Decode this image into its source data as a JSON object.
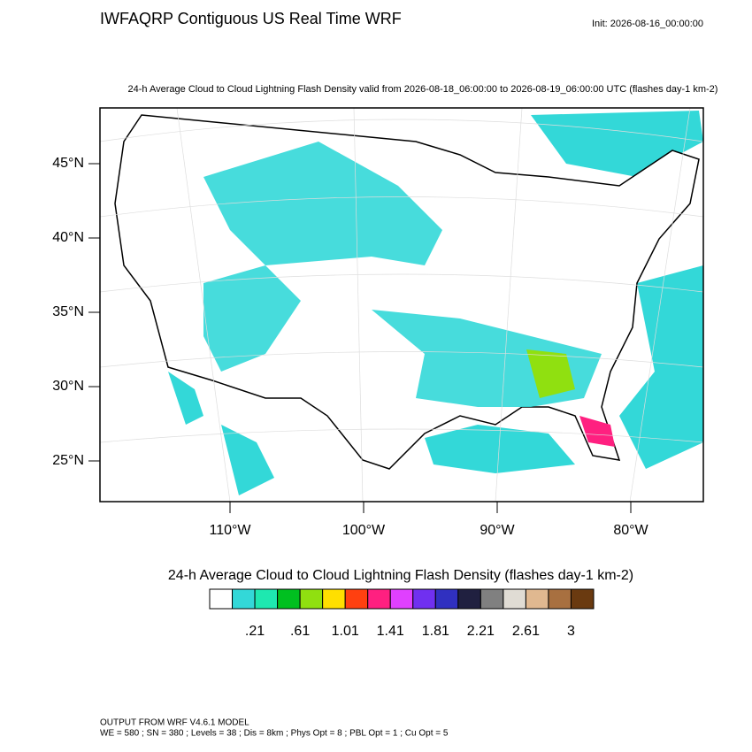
{
  "header": {
    "title": "IWFAQRP Contiguous US Real Time WRF",
    "init": "Init: 2026-08-16_00:00:00"
  },
  "map": {
    "subtitle": "24-h Average Cloud to Cloud Lightning Flash Density valid from 2026-08-18_06:00:00 to 2026-08-19_06:00:00 UTC   (flashes day-1 km-2)",
    "lat_labels": [
      "45°N",
      "40°N",
      "35°N",
      "30°N",
      "25°N"
    ],
    "lon_labels": [
      "110°W",
      "100°W",
      "90°W",
      "80°W"
    ]
  },
  "colorbar": {
    "title": "24-h Average Cloud to Cloud Lightning Flash Density  (flashes day-1 km-2)",
    "colors": [
      "#ffffff",
      "#33d8d8",
      "#1ee8b0",
      "#00c020",
      "#90e010",
      "#ffdf00",
      "#ff4010",
      "#ff2080",
      "#e040ff",
      "#7030f0",
      "#3030c0",
      "#202040",
      "#808080",
      "#e0dcd4",
      "#e0b890",
      "#a87040",
      "#6a3a10"
    ],
    "labels": [
      ".21",
      ".61",
      "1.01",
      "1.41",
      "1.81",
      "2.21",
      "2.61",
      "3"
    ]
  },
  "footer": {
    "line1": "OUTPUT FROM WRF V4.6.1 MODEL",
    "line2": "WE = 580 ; SN = 380 ; Levels = 38 ; Dis = 8km ; Phys Opt = 8 ; PBL Opt = 1 ; Cu Opt = 5"
  }
}
